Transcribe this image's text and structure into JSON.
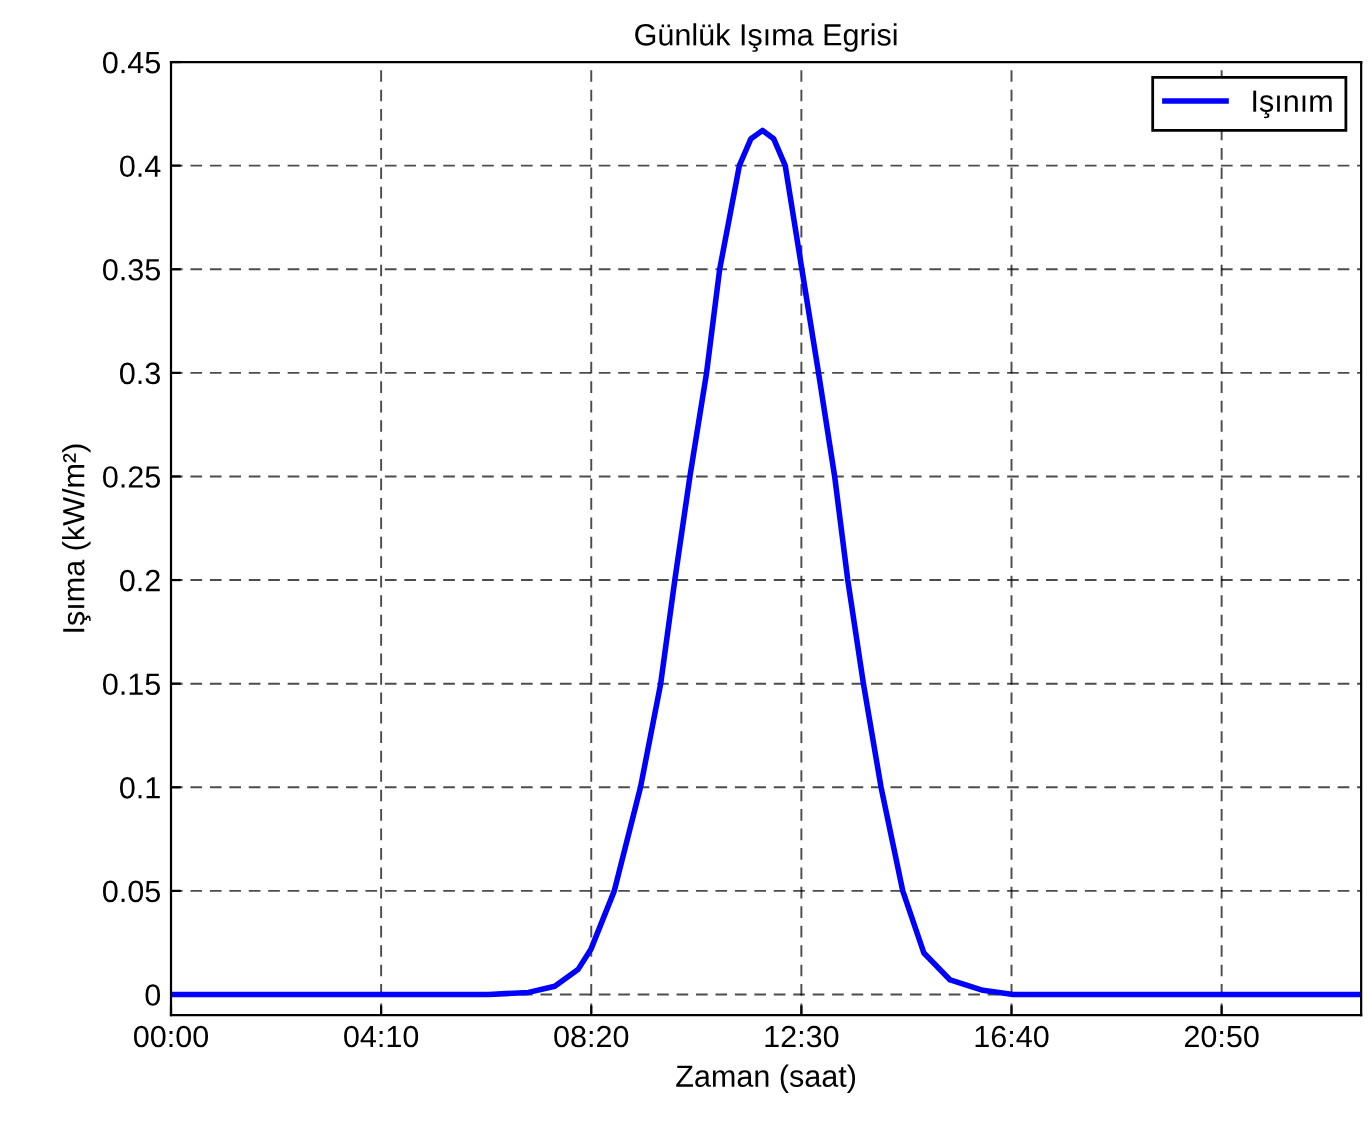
{
  "chart_data": {
    "type": "line",
    "title": "Günlük Işıma Egrisi",
    "xlabel": "Zaman (saat)",
    "ylabel": "Işıma (kW/m²)",
    "series": [
      {
        "name": "Işınım",
        "color": "#0000ff",
        "x": [
          0,
          6.3,
          7.09,
          7.61,
          8.07,
          8.33,
          8.79,
          9.31,
          9.71,
          9.99,
          10.29,
          10.62,
          10.88,
          11.27,
          11.5,
          11.73,
          11.95,
          12.18,
          12.51,
          12.84,
          13.16,
          13.42,
          13.73,
          14.08,
          14.51,
          14.93,
          15.45,
          16.1,
          16.7,
          23.6
        ],
        "values": [
          0,
          0,
          0.001,
          0.004,
          0.012,
          0.022,
          0.05,
          0.1,
          0.15,
          0.2,
          0.25,
          0.3,
          0.35,
          0.4,
          0.413,
          0.417,
          0.413,
          0.4,
          0.35,
          0.3,
          0.25,
          0.2,
          0.15,
          0.1,
          0.05,
          0.02,
          0.007,
          0.002,
          0,
          0
        ]
      }
    ],
    "xlim": [
      0,
      23.6
    ],
    "xticks": [
      {
        "value": 0,
        "label": "00:00"
      },
      {
        "value": 4.1667,
        "label": "04:10"
      },
      {
        "value": 8.3333,
        "label": "08:20"
      },
      {
        "value": 12.5,
        "label": "12:30"
      },
      {
        "value": 16.6667,
        "label": "16:40"
      },
      {
        "value": 20.8333,
        "label": "20:50"
      }
    ],
    "ylim": [
      -0.01,
      0.45
    ],
    "yticks": [
      0,
      0.05,
      0.1,
      0.15,
      0.2,
      0.25,
      0.3,
      0.35,
      0.4,
      0.45
    ],
    "grid": true,
    "legend": "top right",
    "line_style": "solid",
    "marker": "none"
  }
}
